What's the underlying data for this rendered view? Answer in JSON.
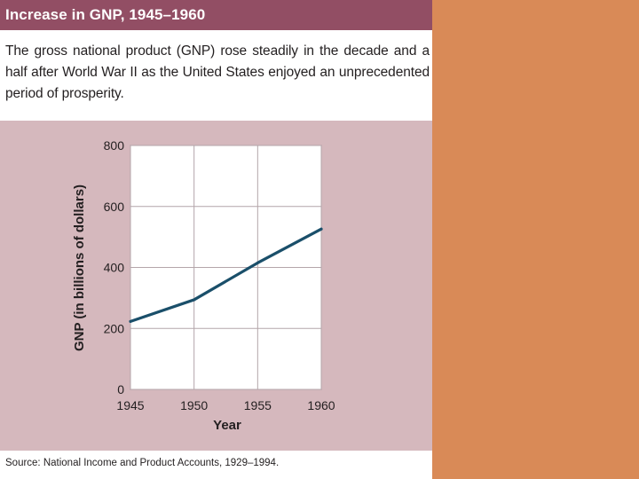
{
  "header": {
    "title": "Increase in GNP, 1945–1960",
    "caption": "The gross national product (GNP) rose steadily in the decade and a half after World War II as the United States enjoyed an unprecedented period of prosperity."
  },
  "footer": {
    "source": "Source: National Income and Product Accounts, 1929–1994."
  },
  "colors": {
    "title_bar": "#924e64",
    "chart_panel": "#d5b8bd",
    "plot_area": "#ffffff",
    "line": "#1a4f6a",
    "right_block": "#d98a57"
  },
  "chart_data": {
    "type": "line",
    "title": "Increase in GNP, 1945–1960",
    "xlabel": "Year",
    "ylabel": "GNP (in billions of dollars)",
    "xlim": [
      1945,
      1960
    ],
    "ylim": [
      0,
      800
    ],
    "xticks": [
      "1945",
      "1950",
      "1955",
      "1960"
    ],
    "yticks": [
      "0",
      "200",
      "400",
      "600",
      "800"
    ],
    "grid": true,
    "x": [
      1945,
      1950,
      1955,
      1960
    ],
    "series": [
      {
        "values": [
          223,
          294,
          415,
          526
        ]
      }
    ]
  }
}
